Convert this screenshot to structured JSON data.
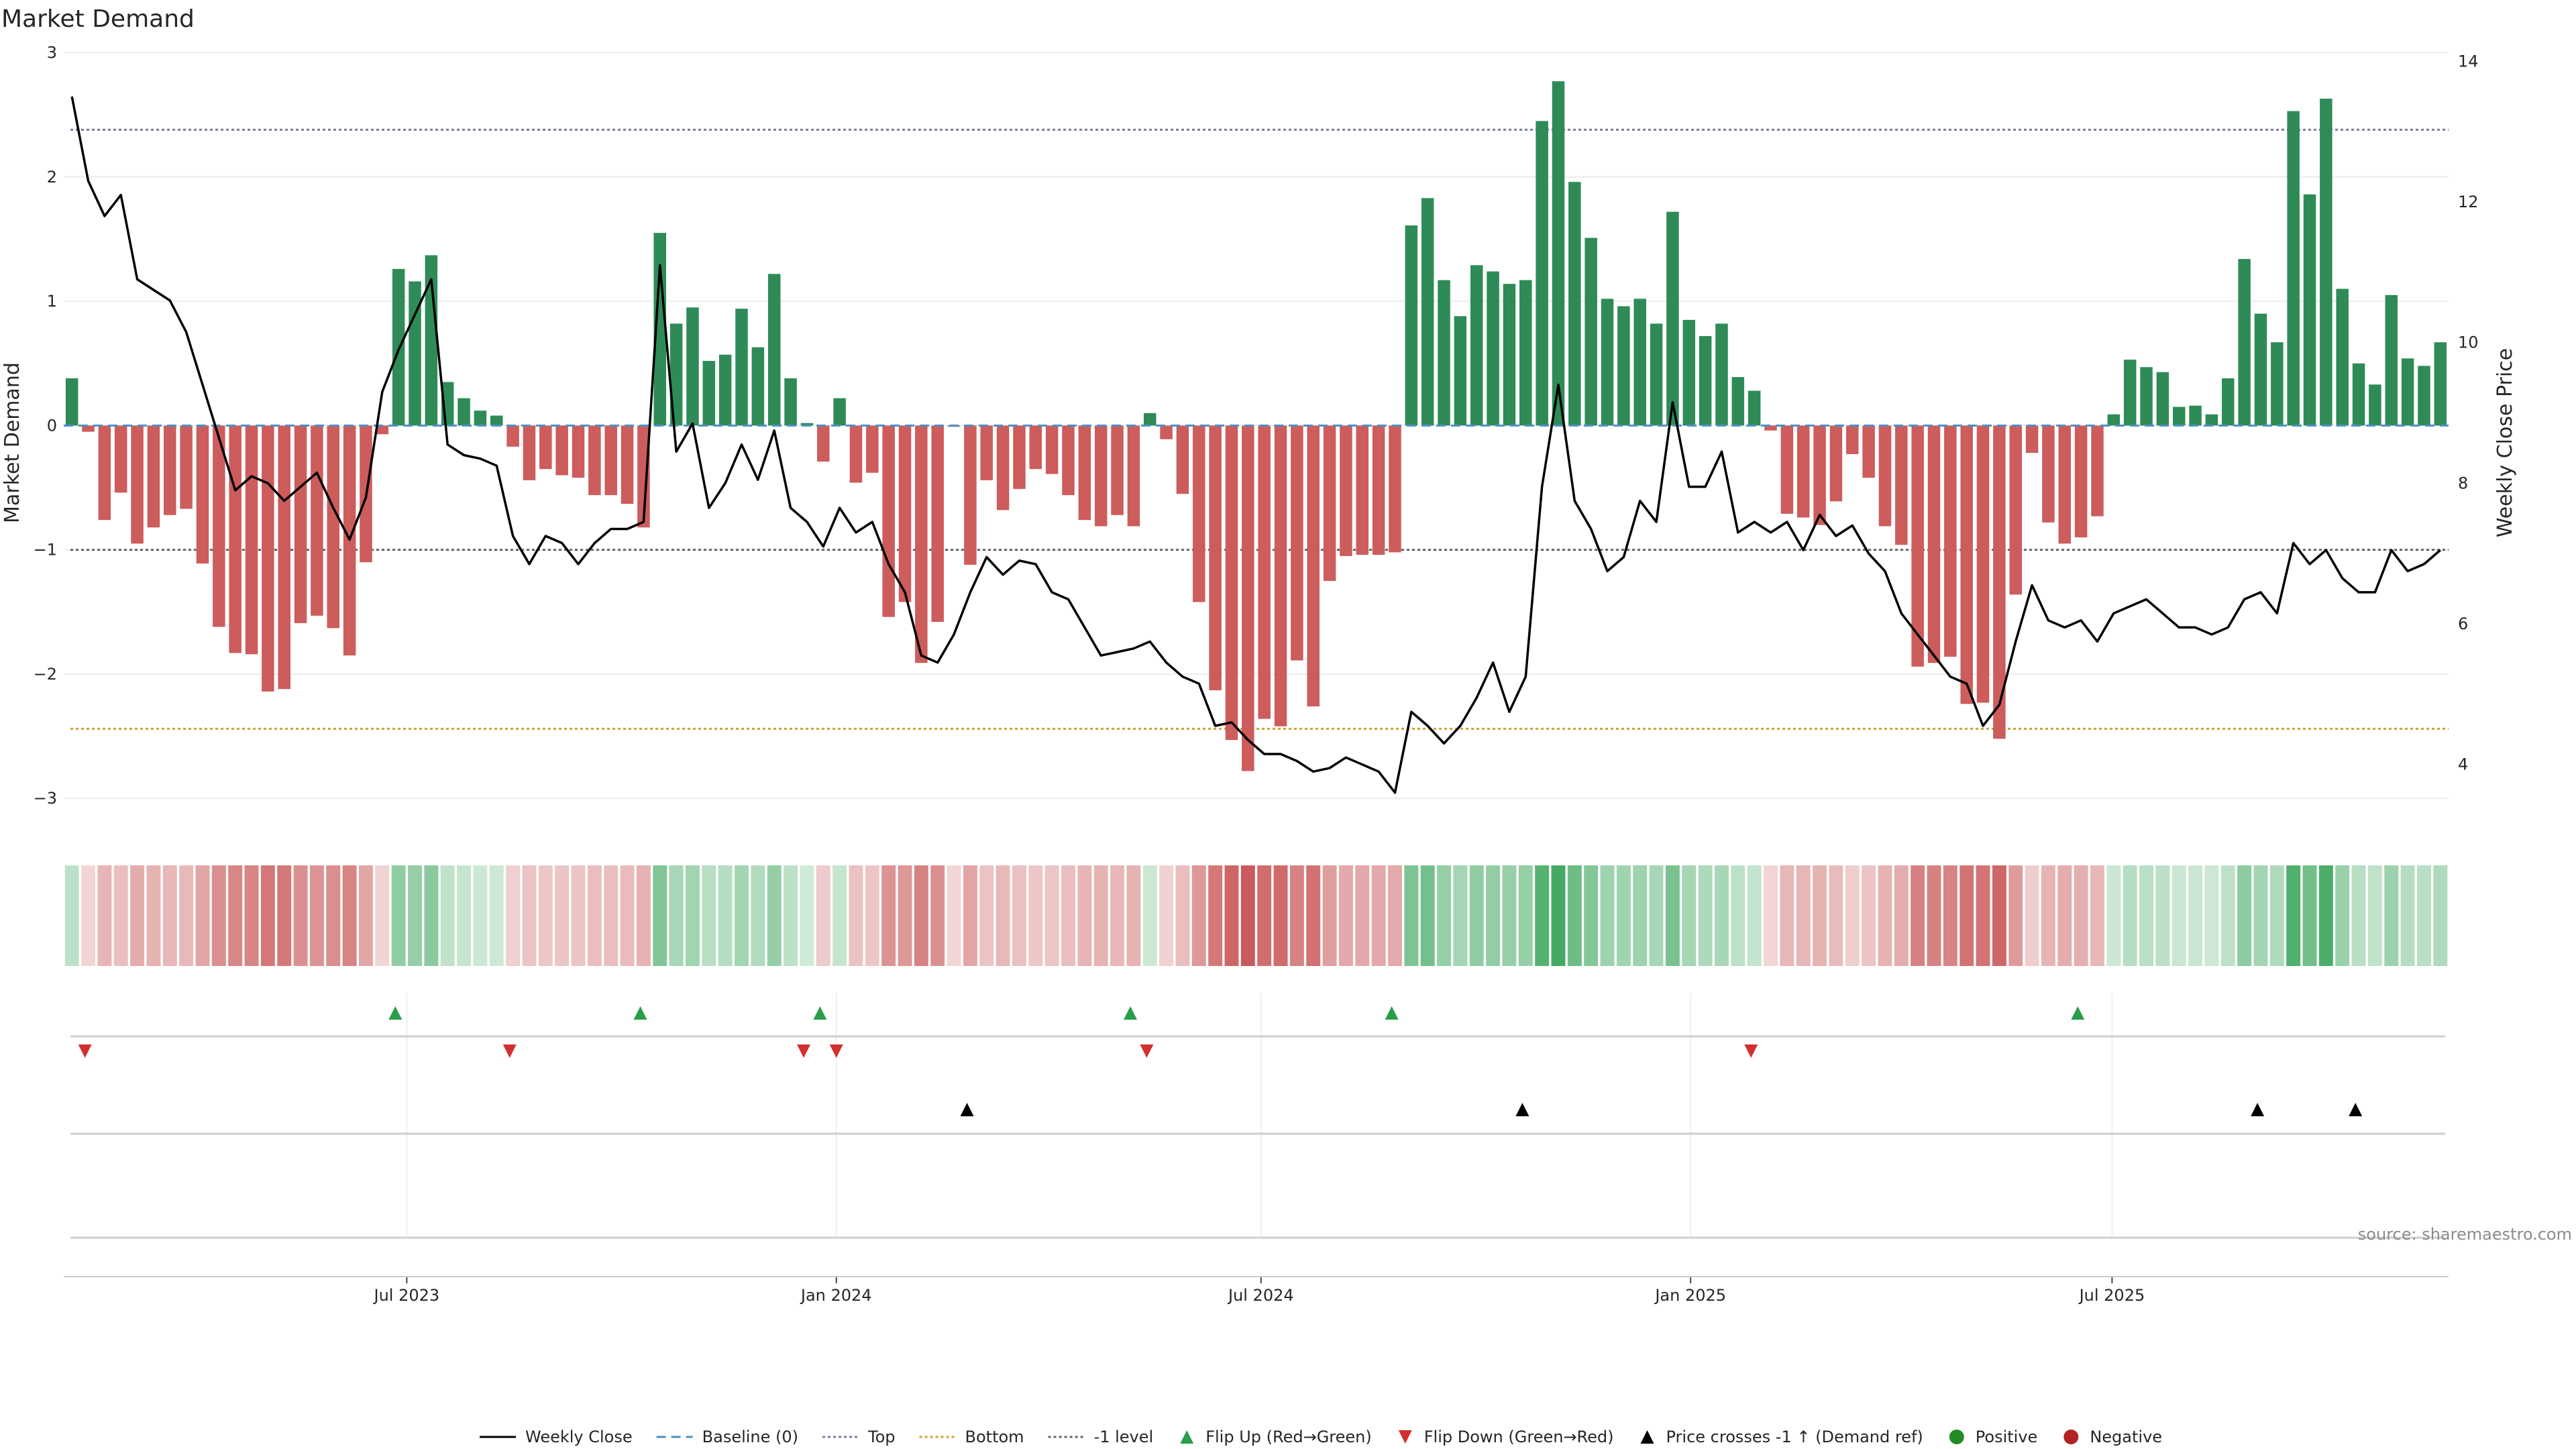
{
  "chart_data": {
    "type": "bar",
    "title": "Market Demand",
    "ylabel_left": "Market Demand",
    "ylabel_right": "Weekly Close Price",
    "source": "source: sharemaestro.com",
    "left_axis": {
      "ylim": [
        -3.35,
        3.1
      ],
      "ticks": [
        3,
        2,
        1,
        0,
        -1,
        -2,
        -3
      ],
      "tick_labels": [
        "3",
        "2",
        "1",
        "0",
        "−1",
        "−2",
        "−3"
      ]
    },
    "right_axis": {
      "ylim": [
        2.9,
        14.3
      ],
      "ticks": [
        14,
        12,
        10,
        8,
        6,
        4
      ],
      "tick_labels": [
        "14",
        "12",
        "10",
        "8",
        "6",
        "4"
      ]
    },
    "x_axis": {
      "start_week": 0,
      "end_week": 144,
      "ticks": [
        {
          "label": "Jul 2023",
          "week": 21
        },
        {
          "label": "Jan 2024",
          "week": 47.3
        },
        {
          "label": "Jul 2024",
          "week": 73.3
        },
        {
          "label": "Jan 2025",
          "week": 99.6
        },
        {
          "label": "Jul 2025",
          "week": 125.4
        }
      ]
    },
    "reference_lines": {
      "baseline": 0,
      "top": 2.38,
      "bottom": -2.44,
      "minus_one": -1
    },
    "demand": [
      0.38,
      -0.05,
      -0.76,
      -0.54,
      -0.95,
      -0.82,
      -0.72,
      -0.67,
      -1.11,
      -1.62,
      -1.83,
      -1.84,
      -2.14,
      -2.12,
      -1.59,
      -1.53,
      -1.63,
      -1.85,
      -1.1,
      -0.07,
      1.26,
      1.16,
      1.37,
      0.35,
      0.22,
      0.12,
      0.08,
      -0.17,
      -0.44,
      -0.35,
      -0.4,
      -0.42,
      -0.56,
      -0.56,
      -0.63,
      -0.82,
      1.55,
      0.82,
      0.95,
      0.52,
      0.57,
      0.94,
      0.63,
      1.22,
      0.38,
      0.02,
      -0.29,
      0.22,
      -0.46,
      -0.38,
      -1.54,
      -1.42,
      -1.91,
      -1.58,
      -0.01,
      -1.12,
      -0.44,
      -0.68,
      -0.51,
      -0.35,
      -0.39,
      -0.56,
      -0.76,
      -0.81,
      -0.72,
      -0.81,
      0.1,
      -0.11,
      -0.55,
      -1.42,
      -2.13,
      -2.53,
      -2.78,
      -2.36,
      -2.42,
      -1.89,
      -2.26,
      -1.25,
      -1.05,
      -1.04,
      -1.04,
      -1.02,
      1.61,
      1.83,
      1.17,
      0.88,
      1.29,
      1.24,
      1.14,
      1.17,
      2.45,
      2.77,
      1.96,
      1.51,
      1.02,
      0.96,
      1.02,
      0.82,
      1.72,
      0.85,
      0.72,
      0.82,
      0.39,
      0.28,
      -0.04,
      -0.71,
      -0.74,
      -0.8,
      -0.61,
      -0.23,
      -0.42,
      -0.81,
      -0.96,
      -1.94,
      -1.91,
      -1.86,
      -2.24,
      -2.23,
      -2.52,
      -1.36,
      -0.22,
      -0.78,
      -0.95,
      -0.9,
      -0.73,
      0.09,
      0.53,
      0.47,
      0.43,
      0.15,
      0.16,
      0.09,
      0.38,
      1.34,
      0.9,
      0.67,
      2.53,
      1.86,
      2.63,
      1.1,
      0.5,
      0.33,
      1.05,
      0.54,
      0.48,
      0.67
    ],
    "weekly_close": [
      13.5,
      12.3,
      11.8,
      12.1,
      10.9,
      10.75,
      10.6,
      10.15,
      9.4,
      8.65,
      7.9,
      8.1,
      8.0,
      7.75,
      7.95,
      8.15,
      7.65,
      7.2,
      7.8,
      9.3,
      9.9,
      10.4,
      10.9,
      8.55,
      8.4,
      8.35,
      8.25,
      7.25,
      6.85,
      7.25,
      7.15,
      6.85,
      7.15,
      7.35,
      7.35,
      7.45,
      11.1,
      8.45,
      8.85,
      7.65,
      8.0,
      8.55,
      8.05,
      8.75,
      7.65,
      7.45,
      7.1,
      7.65,
      7.3,
      7.45,
      6.85,
      6.45,
      5.55,
      5.45,
      5.85,
      6.45,
      6.95,
      6.7,
      6.9,
      6.85,
      6.45,
      6.35,
      5.95,
      5.55,
      5.6,
      5.65,
      5.75,
      5.45,
      5.25,
      5.15,
      4.55,
      4.6,
      4.35,
      4.15,
      4.15,
      4.05,
      3.9,
      3.95,
      4.1,
      4.0,
      3.9,
      3.6,
      4.75,
      4.55,
      4.3,
      4.55,
      4.95,
      5.45,
      4.75,
      5.25,
      7.95,
      9.4,
      7.75,
      7.35,
      6.75,
      6.95,
      7.75,
      7.45,
      9.15,
      7.95,
      7.95,
      8.45,
      7.3,
      7.45,
      7.3,
      7.45,
      7.05,
      7.55,
      7.25,
      7.4,
      7.0,
      6.75,
      6.15,
      5.85,
      5.55,
      5.25,
      5.15,
      4.55,
      4.85,
      5.75,
      6.55,
      6.05,
      5.95,
      6.05,
      5.75,
      6.15,
      6.25,
      6.35,
      6.15,
      5.95,
      5.95,
      5.85,
      5.95,
      6.35,
      6.45,
      6.15,
      7.15,
      6.85,
      7.05,
      6.65,
      6.45,
      6.45,
      7.05,
      6.75,
      6.85,
      7.05
    ],
    "flip_up_weeks": [
      20.3,
      35.3,
      46.3,
      65.3,
      81.3,
      123.3
    ],
    "flip_down_weeks": [
      1.3,
      27.3,
      45.3,
      47.3,
      66.3,
      103.3
    ],
    "price_cross_weeks": [
      55.3,
      89.3,
      134.3,
      140.3
    ],
    "colors": {
      "positive_bar": "#2e8b57",
      "negative_bar": "#cd5c5c",
      "price_line": "#000000",
      "baseline": "#4a90c8",
      "top": "#7a7aa8",
      "bottom": "#d4a030",
      "minus_one": "#666666",
      "flip_up": "#2a9d4a",
      "flip_down": "#d32f2f",
      "positive_dot": "#228b22",
      "negative_dot": "#b22222"
    },
    "legend": [
      {
        "label": "Weekly Close",
        "kind": "line"
      },
      {
        "label": "Baseline (0)",
        "kind": "baseline"
      },
      {
        "label": "Top",
        "kind": "top"
      },
      {
        "label": "Bottom",
        "kind": "bottom"
      },
      {
        "label": "-1 level",
        "kind": "minus_one"
      },
      {
        "label": "Flip Up (Red→Green)",
        "kind": "flip_up"
      },
      {
        "label": "Flip Down (Green→Red)",
        "kind": "flip_down"
      },
      {
        "label": "Price crosses -1 ↑ (Demand ref)",
        "kind": "price_cross"
      },
      {
        "label": "Positive",
        "kind": "positive"
      },
      {
        "label": "Negative",
        "kind": "negative"
      }
    ]
  }
}
